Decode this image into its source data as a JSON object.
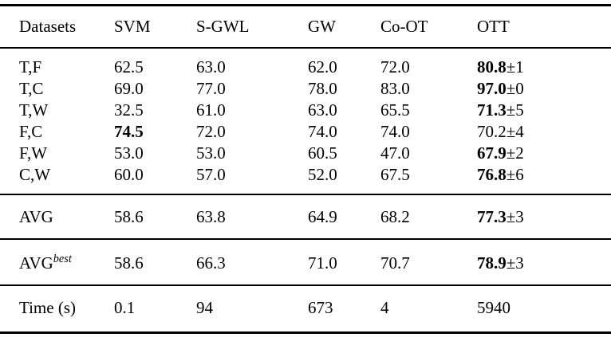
{
  "table": {
    "header": [
      "Datasets",
      "SVM",
      "S-GWL",
      "GW",
      "Co-OT",
      "OTT"
    ],
    "sections": [
      {
        "kind": "data",
        "rows": [
          {
            "cells": [
              {
                "text": "T,F"
              },
              {
                "text": "62.5"
              },
              {
                "text": "63.0"
              },
              {
                "text": "62.0"
              },
              {
                "text": "72.0"
              },
              {
                "text": "80.8",
                "bold": true,
                "suffix": "±1"
              }
            ]
          },
          {
            "cells": [
              {
                "text": "T,C"
              },
              {
                "text": "69.0"
              },
              {
                "text": "77.0"
              },
              {
                "text": "78.0"
              },
              {
                "text": "83.0"
              },
              {
                "text": "97.0",
                "bold": true,
                "suffix": "±0"
              }
            ]
          },
          {
            "cells": [
              {
                "text": "T,W"
              },
              {
                "text": "32.5"
              },
              {
                "text": "61.0"
              },
              {
                "text": "63.0"
              },
              {
                "text": "65.5"
              },
              {
                "text": "71.3",
                "bold": true,
                "suffix": "±5"
              }
            ]
          },
          {
            "cells": [
              {
                "text": "F,C"
              },
              {
                "text": "74.5",
                "bold": true
              },
              {
                "text": "72.0"
              },
              {
                "text": "74.0"
              },
              {
                "text": "74.0"
              },
              {
                "text": "70.2",
                "suffix": "±4"
              }
            ]
          },
          {
            "cells": [
              {
                "text": "F,W"
              },
              {
                "text": "53.0"
              },
              {
                "text": "53.0"
              },
              {
                "text": "60.5"
              },
              {
                "text": "47.0"
              },
              {
                "text": "67.9",
                "bold": true,
                "suffix": "±2"
              }
            ]
          },
          {
            "cells": [
              {
                "text": "C,W"
              },
              {
                "text": "60.0"
              },
              {
                "text": "57.0"
              },
              {
                "text": "52.0"
              },
              {
                "text": "67.5"
              },
              {
                "text": "76.8",
                "bold": true,
                "suffix": "±6"
              }
            ]
          }
        ]
      },
      {
        "kind": "avg",
        "rows": [
          {
            "cells": [
              {
                "text": "AVG"
              },
              {
                "text": "58.6"
              },
              {
                "text": "63.8"
              },
              {
                "text": "64.9"
              },
              {
                "text": "68.2"
              },
              {
                "text": "77.3",
                "bold": true,
                "suffix": "±3"
              }
            ]
          }
        ]
      },
      {
        "kind": "avgbest",
        "rows": [
          {
            "cells": [
              {
                "text": "AVG",
                "sup": "best"
              },
              {
                "text": "58.6"
              },
              {
                "text": "66.3"
              },
              {
                "text": "71.0"
              },
              {
                "text": "70.7"
              },
              {
                "text": "78.9",
                "bold": true,
                "suffix": "±3"
              }
            ]
          }
        ]
      },
      {
        "kind": "time",
        "rows": [
          {
            "cells": [
              {
                "text": "Time (s)"
              },
              {
                "text": "0.1"
              },
              {
                "text": "94"
              },
              {
                "text": "673"
              },
              {
                "text": "4"
              },
              {
                "text": "5940"
              }
            ]
          }
        ]
      }
    ]
  }
}
